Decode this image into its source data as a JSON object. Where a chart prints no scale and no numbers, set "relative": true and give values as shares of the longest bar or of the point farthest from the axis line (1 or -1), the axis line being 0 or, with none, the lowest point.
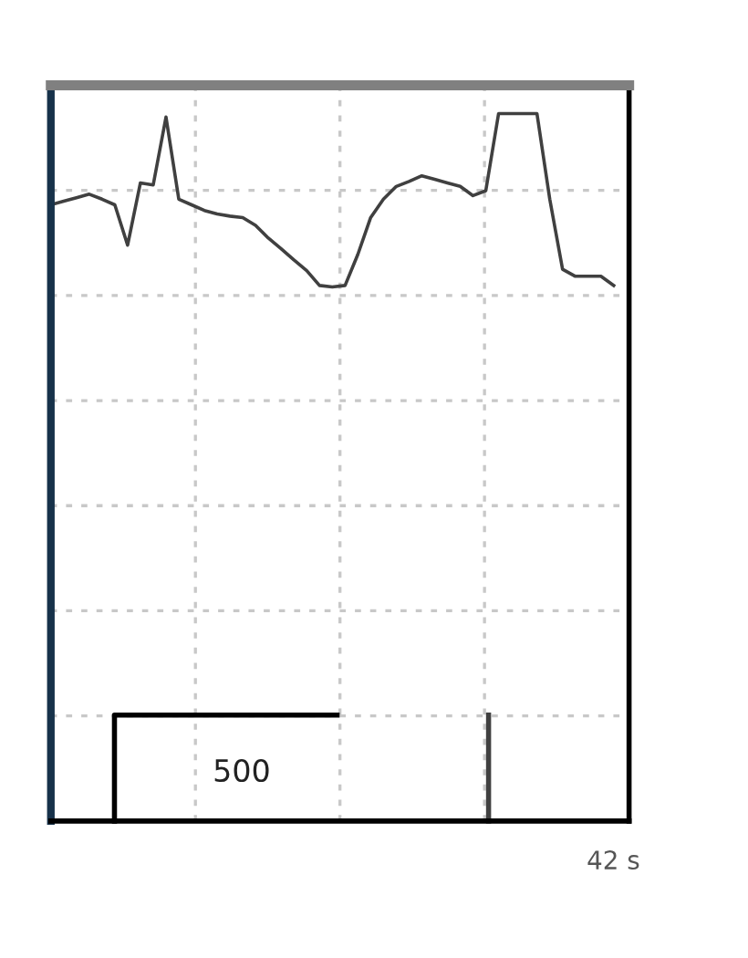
{
  "chart_data": {
    "type": "line",
    "relative": true,
    "color": "#404040",
    "grid": true,
    "categories": [
      null,
      null,
      null,
      null,
      null,
      null,
      null,
      null,
      null,
      null,
      null,
      null,
      null,
      null,
      null,
      null,
      null,
      null,
      null,
      null,
      null,
      null,
      null,
      null,
      null,
      null,
      null,
      null,
      null,
      null,
      null,
      null,
      null,
      null,
      null,
      null,
      null,
      null,
      null,
      null,
      null,
      null,
      null,
      null,
      null
    ],
    "values": [
      0.871,
      0.876,
      0.881,
      0.886,
      0.879,
      0.871,
      0.814,
      0.902,
      0.899,
      0.995,
      0.879,
      0.871,
      0.863,
      0.858,
      0.855,
      0.853,
      0.842,
      0.824,
      0.809,
      0.793,
      0.778,
      0.757,
      0.755,
      0.757,
      0.801,
      0.853,
      0.879,
      0.897,
      0.904,
      0.912,
      0.907,
      0.902,
      0.897,
      0.884,
      0.891,
      1,
      1,
      1,
      1,
      0.879,
      0.78,
      0.77,
      0.77,
      0.77,
      0.757
    ],
    "annotations": [
      "500",
      "42 s"
    ]
  }
}
